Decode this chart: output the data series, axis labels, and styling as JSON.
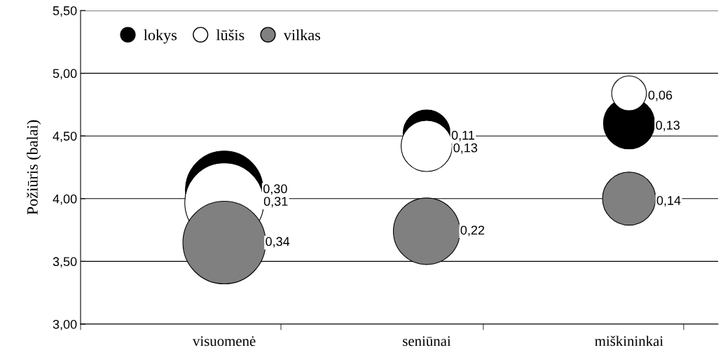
{
  "chart_data": {
    "type": "bubble",
    "ylabel": "Požiūris (balai)",
    "categories": [
      "visuomenė",
      "seniūnai",
      "miškininkai"
    ],
    "ylim": [
      3.0,
      5.5
    ],
    "yticks": [
      {
        "value": 3.0,
        "label": "3,00"
      },
      {
        "value": 3.5,
        "label": "3,50"
      },
      {
        "value": 4.0,
        "label": "4,00"
      },
      {
        "value": 4.5,
        "label": "4,50"
      },
      {
        "value": 5.0,
        "label": "5,00"
      },
      {
        "value": 5.5,
        "label": "5,50"
      }
    ],
    "grid": "y",
    "legend": "top left",
    "series": [
      {
        "name": "lokys",
        "color": "#000000",
        "values": [
          4.07,
          4.52,
          4.6
        ],
        "sizes": [
          0.3,
          0.11,
          0.13
        ],
        "value_labels": [
          "0,30",
          "0,11",
          "0,13"
        ]
      },
      {
        "name": "lūšis",
        "color": "#ffffff",
        "values": [
          3.97,
          4.42,
          4.84
        ],
        "sizes": [
          0.31,
          0.13,
          0.06
        ],
        "value_labels": [
          "0,31",
          "0,13",
          "0,06"
        ]
      },
      {
        "name": "vilkas",
        "color": "#808080",
        "values": [
          3.65,
          3.74,
          4.0
        ],
        "sizes": [
          0.34,
          0.22,
          0.14
        ],
        "value_labels": [
          "0,34",
          "0,22",
          "0,14"
        ]
      }
    ]
  }
}
